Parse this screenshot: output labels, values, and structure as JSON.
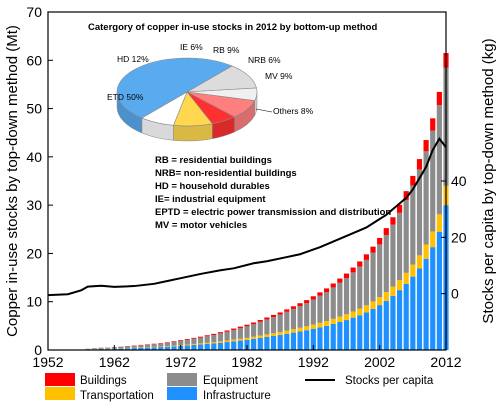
{
  "chart_data": {
    "type": "bar",
    "title": "",
    "x": [
      1952,
      1953,
      1954,
      1955,
      1956,
      1957,
      1958,
      1959,
      1960,
      1961,
      1962,
      1963,
      1964,
      1965,
      1966,
      1967,
      1968,
      1969,
      1970,
      1971,
      1972,
      1973,
      1974,
      1975,
      1976,
      1977,
      1978,
      1979,
      1980,
      1981,
      1982,
      1983,
      1984,
      1985,
      1986,
      1987,
      1988,
      1989,
      1990,
      1991,
      1992,
      1993,
      1994,
      1995,
      1996,
      1997,
      1998,
      1999,
      2000,
      2001,
      2002,
      2003,
      2004,
      2005,
      2006,
      2007,
      2008,
      2009,
      2010,
      2011,
      2012
    ],
    "xticks": [
      "1952",
      "1962",
      "1972",
      "1982",
      "1992",
      "2002",
      "2012"
    ],
    "ylabel_left": "Copper in-use stocks by top-down method (Mt)",
    "ylabel_right": "Stocks per capita by top-down method (kg)",
    "ylim_left": [
      0,
      70
    ],
    "yticks_left": [
      "0",
      "10",
      "20",
      "30",
      "40",
      "50",
      "60",
      "70"
    ],
    "ylim_right": [
      -20,
      100
    ],
    "yticks_right": [
      "0",
      "20",
      "40"
    ],
    "stacked": true,
    "series": [
      {
        "name": "Infrastructure",
        "color": "#1e90ff",
        "values": [
          0,
          0,
          0,
          0,
          0,
          0.05,
          0.1,
          0.15,
          0.2,
          0.2,
          0.25,
          0.3,
          0.35,
          0.4,
          0.45,
          0.5,
          0.55,
          0.6,
          0.65,
          0.75,
          0.85,
          0.95,
          1.05,
          1.15,
          1.25,
          1.35,
          1.5,
          1.65,
          1.8,
          1.95,
          2.1,
          2.3,
          2.5,
          2.7,
          2.9,
          3.1,
          3.35,
          3.6,
          3.85,
          4.1,
          4.4,
          4.7,
          5.0,
          5.4,
          5.8,
          6.2,
          6.7,
          7.2,
          7.8,
          8.5,
          9.3,
          10.2,
          11.2,
          12.4,
          13.7,
          15.2,
          16.9,
          18.9,
          21.3,
          24.5,
          30.0
        ]
      },
      {
        "name": "Transportation",
        "color": "#ffc000",
        "values": [
          0,
          0,
          0,
          0,
          0,
          0,
          0.02,
          0.03,
          0.04,
          0.05,
          0.05,
          0.05,
          0.06,
          0.07,
          0.08,
          0.09,
          0.1,
          0.11,
          0.12,
          0.14,
          0.16,
          0.18,
          0.2,
          0.22,
          0.24,
          0.26,
          0.29,
          0.32,
          0.35,
          0.38,
          0.41,
          0.45,
          0.49,
          0.53,
          0.57,
          0.61,
          0.66,
          0.71,
          0.76,
          0.81,
          0.87,
          0.93,
          0.99,
          1.06,
          1.13,
          1.2,
          1.28,
          1.37,
          1.46,
          1.56,
          1.67,
          1.8,
          1.94,
          2.1,
          2.28,
          2.48,
          2.7,
          2.95,
          3.25,
          3.6,
          4.0
        ]
      },
      {
        "name": "Equipment",
        "color": "#8c8c8c",
        "values": [
          0,
          0,
          0,
          0,
          0,
          0.05,
          0.1,
          0.15,
          0.2,
          0.2,
          0.25,
          0.3,
          0.35,
          0.4,
          0.45,
          0.5,
          0.55,
          0.6,
          0.7,
          0.8,
          0.9,
          1.0,
          1.1,
          1.2,
          1.35,
          1.5,
          1.65,
          1.8,
          2.0,
          2.2,
          2.4,
          2.6,
          2.85,
          3.1,
          3.35,
          3.6,
          3.9,
          4.2,
          4.5,
          4.8,
          5.2,
          5.6,
          6.0,
          6.5,
          7.0,
          7.5,
          8.1,
          8.7,
          9.4,
          10.1,
          10.9,
          11.8,
          12.8,
          13.9,
          15.1,
          16.4,
          17.8,
          19.3,
          20.9,
          22.6,
          24.5
        ]
      },
      {
        "name": "Buildings",
        "color": "#ff0000",
        "values": [
          0,
          0,
          0,
          0,
          0,
          0,
          0.02,
          0.03,
          0.04,
          0.05,
          0.05,
          0.05,
          0.06,
          0.07,
          0.08,
          0.09,
          0.1,
          0.11,
          0.12,
          0.13,
          0.14,
          0.15,
          0.17,
          0.19,
          0.21,
          0.23,
          0.25,
          0.27,
          0.29,
          0.31,
          0.33,
          0.35,
          0.38,
          0.41,
          0.44,
          0.47,
          0.5,
          0.54,
          0.58,
          0.62,
          0.66,
          0.71,
          0.76,
          0.81,
          0.87,
          0.93,
          1.0,
          1.07,
          1.15,
          1.24,
          1.33,
          1.44,
          1.55,
          1.68,
          1.82,
          1.97,
          2.14,
          2.33,
          2.53,
          2.75,
          3.0
        ]
      }
    ],
    "line": {
      "name": "Stocks per capita",
      "color": "#000000",
      "axis": "right",
      "x": [
        1952,
        1955,
        1957,
        1958,
        1960,
        1962,
        1965,
        1968,
        1970,
        1972,
        1975,
        1978,
        1980,
        1983,
        1985,
        1988,
        1990,
        1993,
        1995,
        1997,
        1999,
        2000,
        2001,
        2002,
        2003,
        2004,
        2005,
        2006,
        2007,
        2008,
        2009,
        2010,
        2011,
        2012
      ],
      "values": [
        -0.5,
        -0.2,
        1.2,
        2.5,
        2.8,
        2.4,
        2.7,
        3.5,
        4.5,
        5.5,
        7.0,
        8.3,
        9.0,
        10.8,
        11.5,
        13.0,
        14.0,
        16.5,
        18.5,
        20.5,
        22.5,
        23.5,
        25.0,
        26.5,
        28.0,
        30.0,
        32.0,
        34.0,
        37.0,
        41.0,
        45.0,
        51.0,
        55.0,
        52.0
      ]
    },
    "legend": {
      "placement": "bottom",
      "order": [
        "Buildings",
        "Equipment",
        "Stocks per capita",
        "Transportation",
        "Infrastructure"
      ]
    }
  },
  "inset": {
    "title": "Catergory of copper in-use stocks in 2012 by bottom-up method",
    "pie": [
      {
        "key": "ETD",
        "label": "ETD 50%",
        "value": 50,
        "color": "#5aaaf0"
      },
      {
        "key": "HD",
        "label": "HD 12%",
        "value": 12,
        "color": "#dcdcdc"
      },
      {
        "key": "IE",
        "label": "IE 6%",
        "value": 6,
        "color": "#f0f0f0"
      },
      {
        "key": "RB",
        "label": "RB 9%",
        "value": 9,
        "color": "#ff7f7f"
      },
      {
        "key": "NRB",
        "label": "NRB 6%",
        "value": 6,
        "color": "#ff3030"
      },
      {
        "key": "MV",
        "label": "MV 9%",
        "value": 9,
        "color": "#ffd850"
      },
      {
        "key": "Others",
        "label": "Others 8%",
        "value": 8,
        "color": "#ffffff"
      }
    ],
    "abbreviations": [
      "RB = residential buildings",
      "NRB= non-residential buildings",
      "HD = household durables",
      "IE= industrial equipment",
      "EPTD = electric power transmission and distribution",
      "MV = motor vehicles"
    ]
  }
}
